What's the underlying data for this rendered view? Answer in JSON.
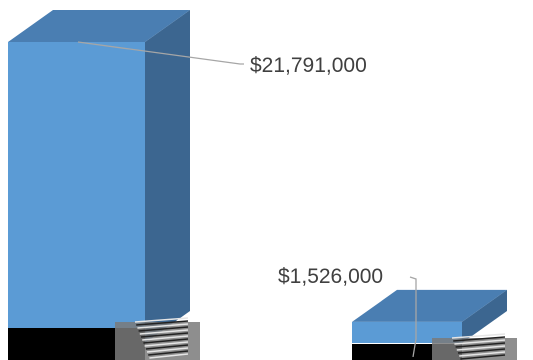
{
  "chart_data": {
    "type": "bar",
    "style": "3d-column",
    "title": "",
    "xlabel": "",
    "ylabel": "",
    "categories": [
      "",
      ""
    ],
    "values": [
      21791000,
      1526000
    ],
    "data_labels": [
      "$21,791,000",
      "$1,526,000"
    ],
    "ylim": [
      0,
      22500000
    ],
    "grid": false,
    "legend": "none",
    "colors": {
      "bar_front": "#5b9bd5",
      "bar_top": "#4a7eb2",
      "bar_side": "#3c6690",
      "leader_line": "#a6a6a6",
      "label_text": "#404040",
      "base_dark": "#000000"
    }
  }
}
